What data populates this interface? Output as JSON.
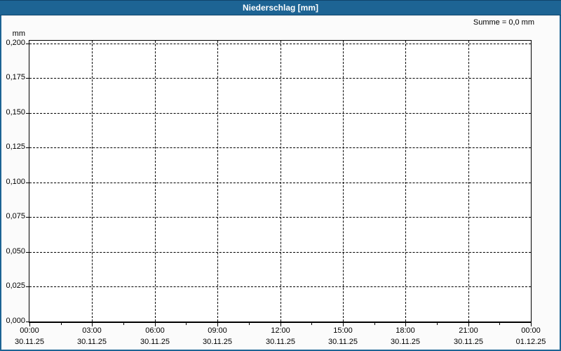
{
  "title_bar": {
    "title": "Niederschlag [mm]"
  },
  "annotation": {
    "sum_label": "Summe = 0,0 mm"
  },
  "colors": {
    "titlebar_bg": "#1d6494",
    "frame": "#1d6494",
    "grid": "#000000",
    "plot_bg": "#ffffff",
    "page_bg": "#fbfbfb",
    "title_text": "#ffffff"
  },
  "chart_data": {
    "type": "bar",
    "title": "Niederschlag [mm]",
    "ylabel_unit": "mm",
    "ylim": [
      0.0,
      0.2
    ],
    "ytick_step": 0.025,
    "decimal_separator": ",",
    "ytick_labels": [
      "0,000",
      "0,025",
      "0,050",
      "0,075",
      "0,100",
      "0,125",
      "0,150",
      "0,175",
      "0,200"
    ],
    "xticks": [
      {
        "time": "00:00",
        "date": "30.11.25"
      },
      {
        "time": "03:00",
        "date": "30.11.25"
      },
      {
        "time": "06:00",
        "date": "30.11.25"
      },
      {
        "time": "09:00",
        "date": "30.11.25"
      },
      {
        "time": "12:00",
        "date": "30.11.25"
      },
      {
        "time": "15:00",
        "date": "30.11.25"
      },
      {
        "time": "18:00",
        "date": "30.11.25"
      },
      {
        "time": "21:00",
        "date": "30.11.25"
      },
      {
        "time": "00:00",
        "date": "01.12.25"
      }
    ],
    "series": [
      {
        "name": "Niederschlag",
        "values": []
      }
    ],
    "sum_label": "Summe = 0,0 mm",
    "sum_value_mm": 0.0,
    "grid": true,
    "legend": "none"
  }
}
